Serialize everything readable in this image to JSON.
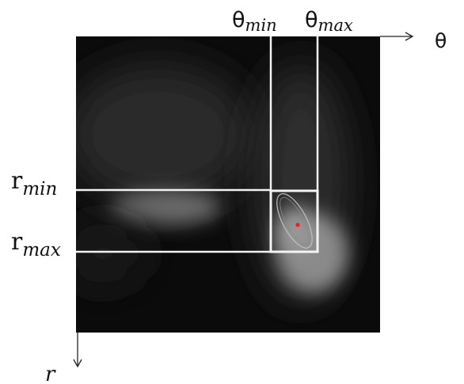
{
  "axes": {
    "theta": {
      "label": "θ"
    },
    "r": {
      "label": "r"
    }
  },
  "bounds": {
    "theta_min": {
      "base": "θ",
      "sub": "min"
    },
    "theta_max": {
      "base": "θ",
      "sub": "max"
    },
    "r_min": {
      "base": "r",
      "sub": "min"
    },
    "r_max": {
      "base": "r",
      "sub": "max"
    }
  },
  "colors": {
    "background": "#ffffff",
    "image_dark": "#0b0b0b",
    "band_lines": "#f2f2f2",
    "window_box": "#f4f4f4",
    "ellipse": "#bfbfbf",
    "center_point": "#ff1a1a",
    "axis": "#222222"
  }
}
